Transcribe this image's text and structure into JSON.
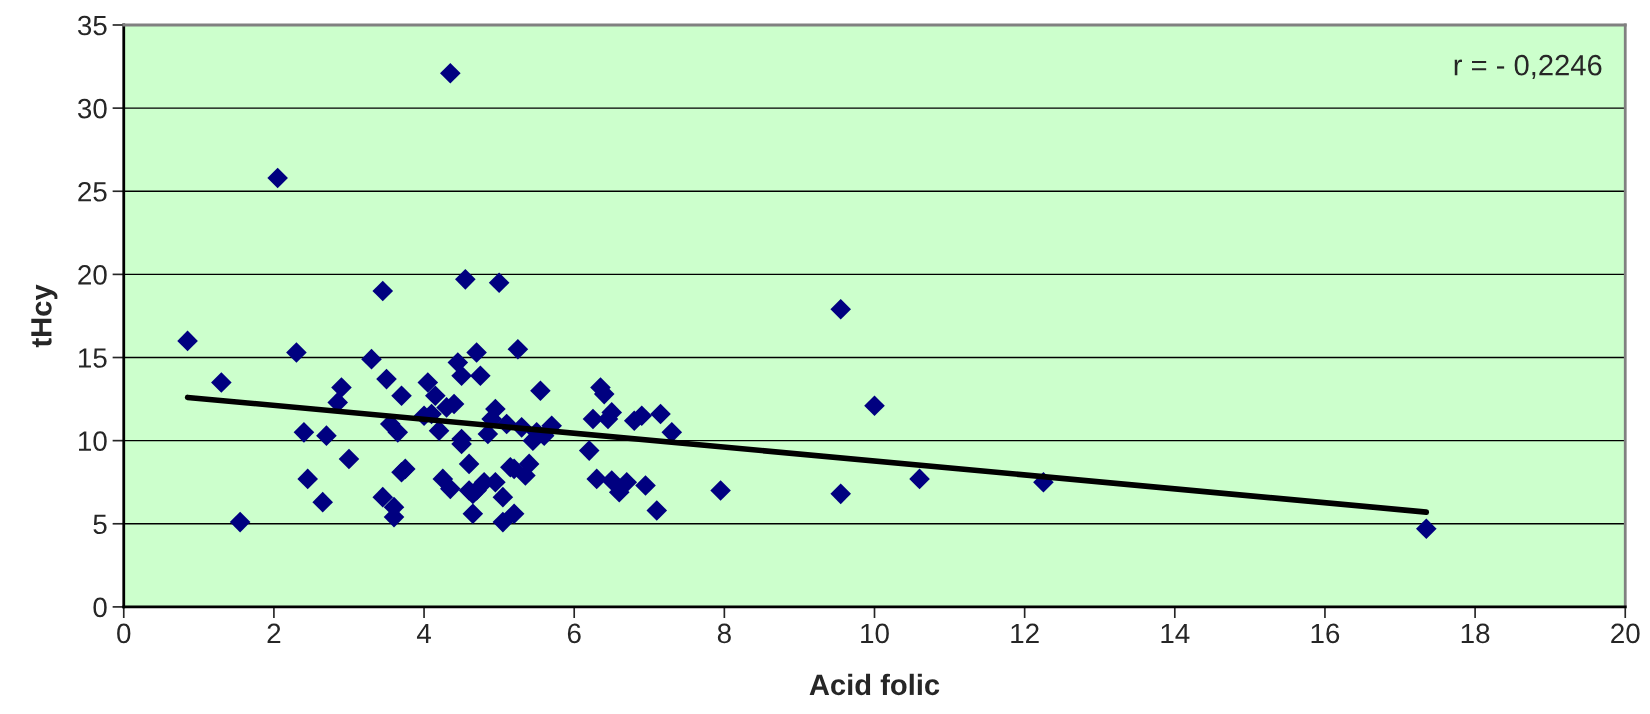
{
  "chart_data": {
    "type": "scatter",
    "xlabel": "Acid folic",
    "ylabel": "tHcy",
    "xlim": [
      0,
      20
    ],
    "xticks": [
      0,
      2,
      4,
      6,
      8,
      10,
      12,
      14,
      16,
      18,
      20
    ],
    "ylim": [
      0,
      35
    ],
    "yticks": [
      0,
      5,
      10,
      15,
      20,
      25,
      30,
      35
    ],
    "grid": "y",
    "marker": "diamond",
    "legend": false,
    "annotations": [
      "r = - 0,2246"
    ],
    "series": [
      {
        "color": "#000080",
        "x": [
          0.85,
          1.3,
          1.55,
          2.05,
          2.3,
          2.4,
          2.45,
          2.65,
          2.7,
          2.85,
          2.9,
          3.0,
          3.3,
          3.45,
          3.45,
          3.5,
          3.55,
          3.6,
          3.6,
          3.65,
          3.7,
          3.75,
          3.7,
          4.0,
          4.05,
          4.1,
          4.15,
          4.2,
          4.25,
          4.3,
          4.35,
          4.35,
          4.4,
          4.45,
          4.5,
          4.5,
          4.5,
          4.55,
          4.6,
          4.6,
          4.65,
          4.65,
          4.7,
          4.7,
          4.75,
          4.8,
          4.85,
          4.9,
          4.95,
          4.95,
          5.0,
          5.05,
          5.05,
          5.1,
          5.15,
          5.2,
          5.2,
          5.25,
          5.3,
          5.35,
          5.4,
          5.45,
          5.5,
          5.55,
          5.6,
          5.7,
          6.2,
          6.25,
          6.3,
          6.35,
          6.4,
          6.45,
          6.5,
          6.5,
          6.6,
          6.7,
          6.8,
          6.9,
          6.95,
          7.1,
          7.15,
          7.3,
          7.95,
          9.55,
          9.55,
          10.0,
          10.6,
          12.25,
          17.35
        ],
        "values": [
          16.0,
          13.5,
          5.1,
          25.8,
          15.3,
          10.5,
          7.7,
          6.3,
          10.3,
          12.3,
          13.2,
          8.9,
          14.9,
          6.6,
          19.0,
          13.7,
          11.0,
          6.0,
          5.4,
          10.5,
          8.1,
          8.3,
          12.7,
          11.5,
          13.5,
          11.6,
          12.7,
          10.6,
          7.7,
          12.0,
          7.1,
          32.1,
          12.2,
          14.7,
          13.9,
          10.1,
          9.8,
          19.7,
          8.6,
          7.0,
          5.6,
          6.8,
          15.3,
          7.0,
          13.9,
          7.5,
          10.4,
          11.3,
          7.5,
          11.9,
          19.5,
          6.6,
          5.1,
          11.0,
          8.4,
          5.6,
          8.3,
          15.5,
          10.8,
          7.9,
          8.6,
          10.0,
          10.5,
          13.0,
          10.3,
          10.9,
          9.4,
          11.3,
          7.7,
          13.2,
          12.8,
          11.3,
          11.7,
          7.6,
          6.9,
          7.5,
          11.2,
          11.5,
          7.3,
          5.8,
          11.6,
          10.5,
          7.0,
          17.9,
          6.8,
          12.1,
          7.7,
          7.5,
          4.7
        ]
      },
      {
        "type": "line",
        "color": "#000000",
        "line_style": "solid",
        "marker": "none",
        "x": [
          0.85,
          17.35
        ],
        "values": [
          12.6,
          5.7
        ]
      }
    ]
  }
}
